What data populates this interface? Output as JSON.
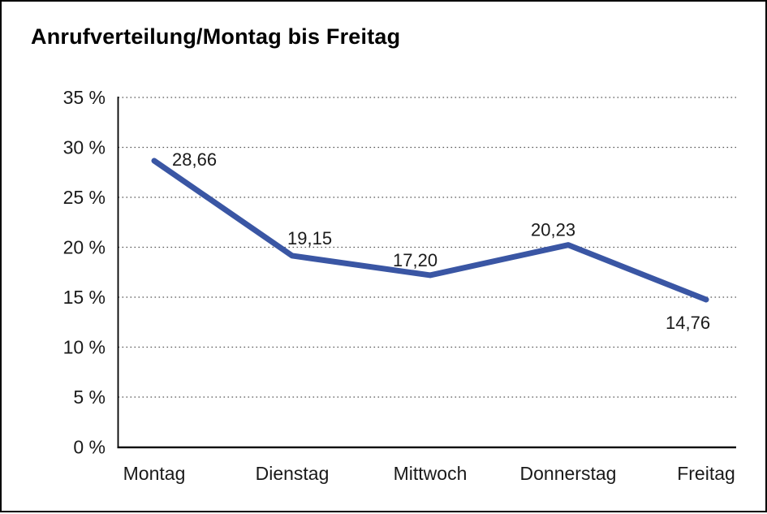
{
  "page": {
    "title": "Anrufverteilung/Montag bis Freitag"
  },
  "chart_data": {
    "type": "line",
    "title": "Anrufverteilung/Montag bis Freitag",
    "categories": [
      "Montag",
      "Dienstag",
      "Mittwoch",
      "Donnerstag",
      "Freitag"
    ],
    "values": [
      28.66,
      19.15,
      17.2,
      20.23,
      14.76
    ],
    "value_labels": [
      "28,66",
      "19,15",
      "17,20",
      "20,23",
      "14,76"
    ],
    "xlabel": "",
    "ylabel": "",
    "ylim": [
      0,
      35
    ],
    "y_step": 5,
    "y_tick_labels": [
      "0 %",
      "5 %",
      "10 %",
      "15 %",
      "20 %",
      "25 %",
      "30 %",
      "35 %"
    ],
    "grid": "dotted-horizontal",
    "legend_position": "none",
    "line_color": "#3A56A4",
    "axis_color": "#000000",
    "grid_color": "#555555",
    "text_color": "#1a1a1a",
    "background_color": "#ffffff",
    "frame_border_color": "#000000"
  }
}
